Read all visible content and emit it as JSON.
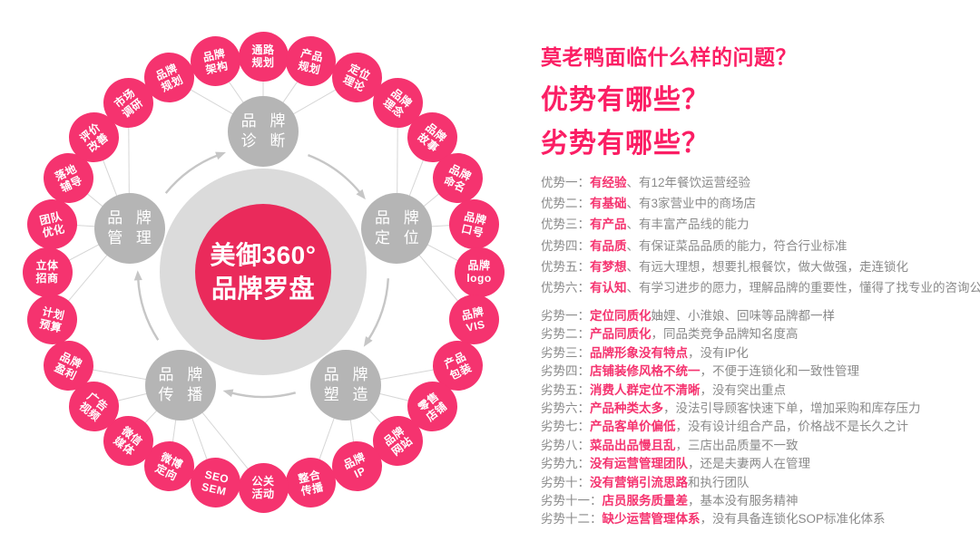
{
  "colors": {
    "ring_pink": "#F5336F",
    "center_pink": "#EA2A5B",
    "hub_gray": "#B5B5B5",
    "donut_gray": "#DBDBDB",
    "line_gray": "#D6D6D6",
    "arrow_gray": "#C6C6C6",
    "heading_pink": "#FB1E64",
    "keyword_pink": "#F5336F",
    "text_gray": "#8A8A8A"
  },
  "diagram": {
    "center": {
      "line1": "美御360°",
      "line2": "品牌罗盘"
    },
    "hubs": [
      {
        "lines": [
          "品 牌",
          "诊 断"
        ]
      },
      {
        "lines": [
          "品 牌",
          "定 位"
        ]
      },
      {
        "lines": [
          "品 牌",
          "塑 造"
        ]
      },
      {
        "lines": [
          "品 牌",
          "传 播"
        ]
      },
      {
        "lines": [
          "品 牌",
          "管 理"
        ]
      }
    ],
    "ring": [
      {
        "lines": [
          "通路",
          "规划"
        ]
      },
      {
        "lines": [
          "产品",
          "规划"
        ]
      },
      {
        "lines": [
          "定位",
          "理论"
        ]
      },
      {
        "lines": [
          "品牌",
          "理念"
        ]
      },
      {
        "lines": [
          "品牌",
          "故事"
        ]
      },
      {
        "lines": [
          "品牌",
          "命名"
        ]
      },
      {
        "lines": [
          "品牌",
          "口号"
        ]
      },
      {
        "lines": [
          "品牌",
          "logo"
        ]
      },
      {
        "lines": [
          "品牌",
          "VIS"
        ]
      },
      {
        "lines": [
          "产品",
          "包装"
        ]
      },
      {
        "lines": [
          "零售",
          "店铺"
        ]
      },
      {
        "lines": [
          "品牌",
          "网站"
        ]
      },
      {
        "lines": [
          "品牌",
          "IP"
        ]
      },
      {
        "lines": [
          "整合",
          "传播"
        ]
      },
      {
        "lines": [
          "公关",
          "活动"
        ]
      },
      {
        "lines": [
          "SEO",
          "SEM"
        ]
      },
      {
        "lines": [
          "微博",
          "定向"
        ]
      },
      {
        "lines": [
          "微信",
          "媒体"
        ]
      },
      {
        "lines": [
          "广告",
          "视频"
        ]
      },
      {
        "lines": [
          "品牌",
          "盈利"
        ]
      },
      {
        "lines": [
          "计划",
          "预算"
        ]
      },
      {
        "lines": [
          "立体",
          "招商"
        ]
      },
      {
        "lines": [
          "团队",
          "优化"
        ]
      },
      {
        "lines": [
          "落地",
          "辅导"
        ]
      },
      {
        "lines": [
          "评价",
          "改善"
        ]
      },
      {
        "lines": [
          "市场",
          "调研"
        ]
      },
      {
        "lines": [
          "品牌",
          "规划"
        ]
      },
      {
        "lines": [
          "品牌",
          "架构"
        ]
      }
    ]
  },
  "panel": {
    "question": "莫老鸭面临什么样的问题？",
    "advantages_title": "优势有哪些？",
    "disadvantages_title": "劣势有哪些？",
    "advantages": [
      {
        "label": "优势一：",
        "highlight": "有经验",
        "rest": "、有12年餐饮运营经验"
      },
      {
        "label": "优势二：",
        "highlight": "有基础",
        "rest": "、有3家营业中的商场店"
      },
      {
        "label": "优势三：",
        "highlight": "有产品",
        "rest": "、有丰富产品线的能力"
      },
      {
        "label": "优势四：",
        "highlight": "有品质",
        "rest": "、有保证菜品品质的能力，符合行业标准"
      },
      {
        "label": "优势五：",
        "highlight": "有梦想",
        "rest": "、有远大理想，想要扎根餐饮，做大做强，走连锁化"
      },
      {
        "label": "优势六：",
        "highlight": "有认知",
        "rest": "、有学习进步的愿力，理解品牌的重要性，懂得了找专业的咨询公司来定战略"
      }
    ],
    "disadvantages": [
      {
        "label": "劣势一：",
        "highlight": "定位同质化",
        "rest": "妯娌、小淮娘、回味等品牌都一样"
      },
      {
        "label": "劣势二：",
        "highlight": "产品同质化",
        "rest": "，同品类竞争品牌知名度高"
      },
      {
        "label": "劣势三：",
        "highlight": "品牌形象没有特点",
        "rest": "，没有IP化"
      },
      {
        "label": "劣势四：",
        "highlight": "店铺装修风格不统一",
        "rest": "，不便于连锁化和一致性管理"
      },
      {
        "label": "劣势五：",
        "highlight": "消费人群定位不清晰",
        "rest": "，没有突出重点"
      },
      {
        "label": "劣势六：",
        "highlight": "产品种类太多",
        "rest": "，没法引导顾客快速下单，增加采购和库存压力"
      },
      {
        "label": "劣势七：",
        "highlight": "产品客单价偏低",
        "rest": "，没有设计组合产品，价格战不是长久之计"
      },
      {
        "label": "劣势八：",
        "highlight": "菜品出品慢且乱",
        "rest": "，三店出品质量不一致"
      },
      {
        "label": "劣势九：",
        "highlight": "没有运营管理团队",
        "rest": "，还是夫妻两人在管理"
      },
      {
        "label": "劣势十：",
        "highlight": "没有营销引流思路",
        "rest": "和执行团队"
      },
      {
        "label": "劣势十一：",
        "highlight": "店员服务质量差",
        "rest": "，基本没有服务精神"
      },
      {
        "label": "劣势十二：",
        "highlight": "缺少运营管理体系",
        "rest": "，没有具备连锁化SOP标准化体系"
      }
    ]
  }
}
